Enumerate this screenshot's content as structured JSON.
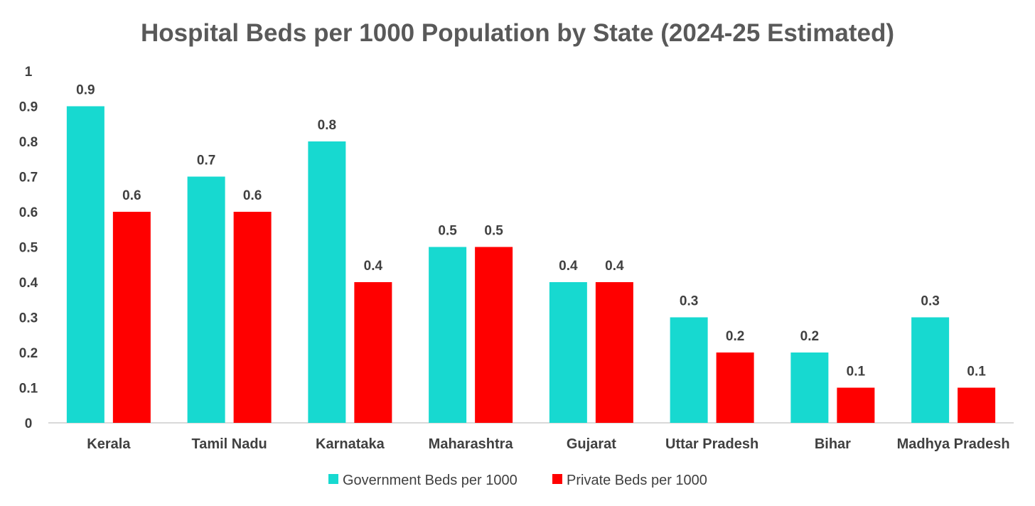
{
  "chart_data": {
    "type": "bar",
    "title": "Hospital Beds per 1000 Population by State (2024-25 Estimated)",
    "categories": [
      "Kerala",
      "Tamil Nadu",
      "Karnataka",
      "Maharashtra",
      "Gujarat",
      "Uttar Pradesh",
      "Bihar",
      "Madhya Pradesh"
    ],
    "series": [
      {
        "name": "Government Beds per 1000",
        "color": "#17D9D0",
        "values": [
          0.9,
          0.7,
          0.8,
          0.5,
          0.4,
          0.3,
          0.2,
          0.3
        ],
        "labels": [
          "0.9",
          "0.7",
          "0.8",
          "0.5",
          "0.4",
          "0.3",
          "0.2",
          "0.3"
        ]
      },
      {
        "name": "Private Beds per 1000",
        "color": "#FF0000",
        "values": [
          0.6,
          0.6,
          0.4,
          0.5,
          0.4,
          0.2,
          0.1,
          0.1
        ],
        "labels": [
          "0.6",
          "0.6",
          "0.4",
          "0.5",
          "0.4",
          "0.2",
          "0.1",
          "0.1"
        ]
      }
    ],
    "y_ticks": [
      0,
      0.1,
      0.2,
      0.3,
      0.4,
      0.5,
      0.6,
      0.7,
      0.8,
      0.9,
      1
    ],
    "y_tick_labels": [
      "0",
      "0.1",
      "0.2",
      "0.3",
      "0.4",
      "0.5",
      "0.6",
      "0.7",
      "0.8",
      "0.9",
      "1"
    ],
    "ylim": [
      0,
      1
    ],
    "xlabel": "",
    "ylabel": "",
    "grid": false,
    "legend_position": "bottom"
  }
}
